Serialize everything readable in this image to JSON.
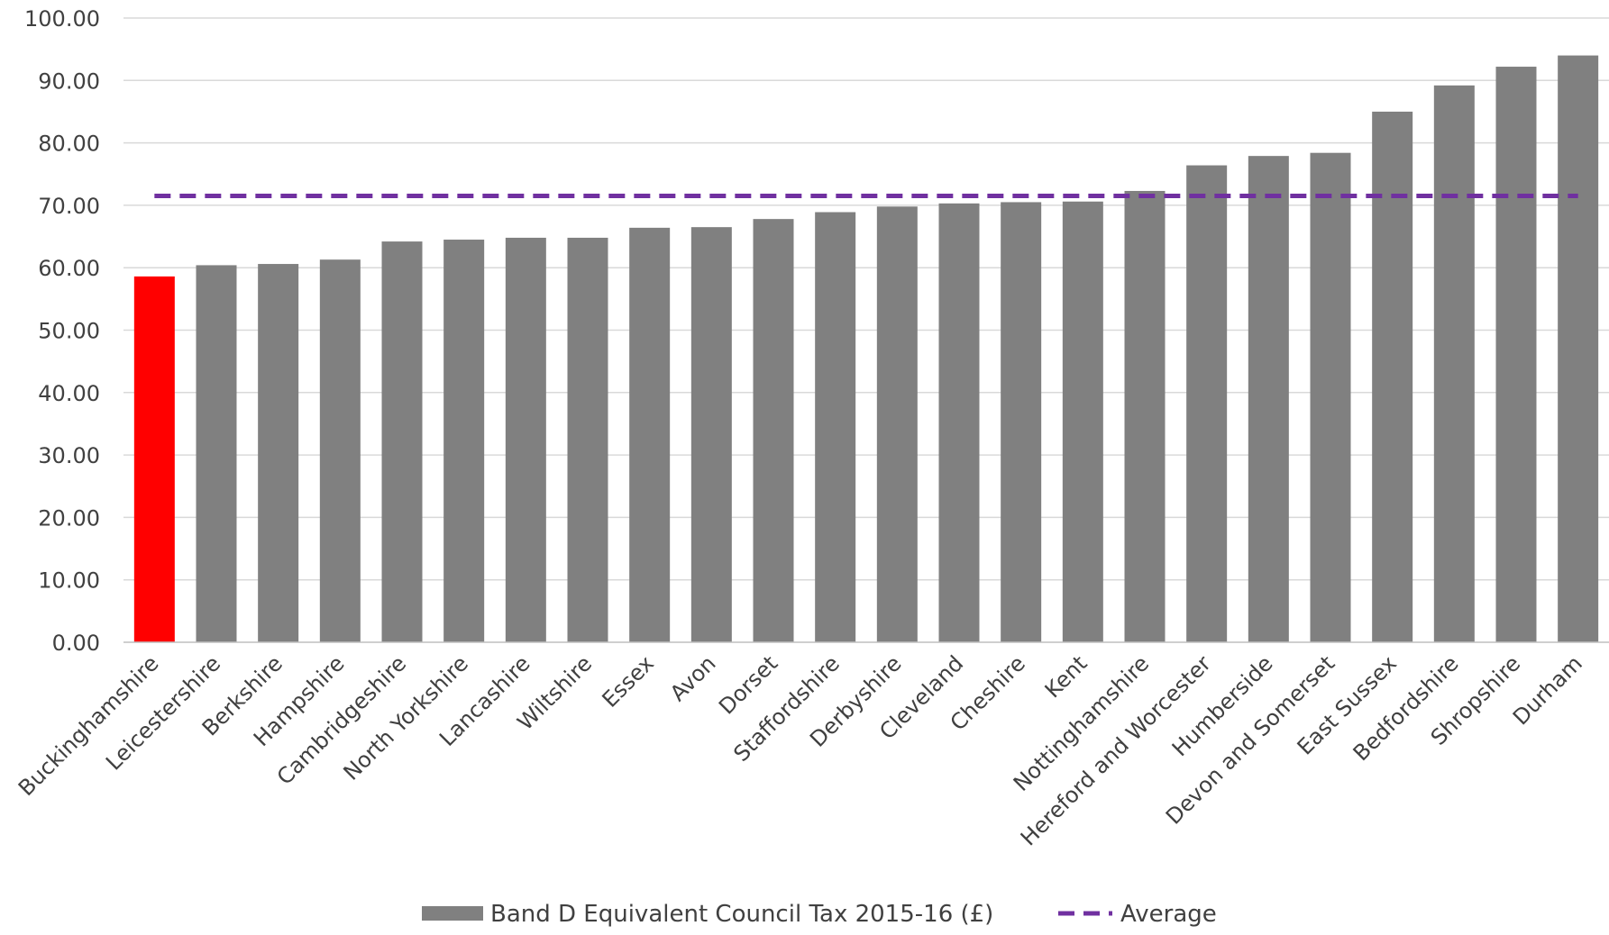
{
  "chart_data": {
    "type": "bar",
    "title": "",
    "xlabel": "",
    "ylabel": "",
    "ylim": [
      0,
      100
    ],
    "yticks": [
      "0.00",
      "10.00",
      "20.00",
      "30.00",
      "40.00",
      "50.00",
      "60.00",
      "70.00",
      "80.00",
      "90.00",
      "100.00"
    ],
    "grid": true,
    "legend_position": "bottom",
    "categories": [
      "Buckinghamshire",
      "Leicestershire",
      "Berkshire",
      "Hampshire",
      "Cambridgeshire",
      "North Yorkshire",
      "Lancashire",
      "Wiltshire",
      "Essex",
      "Avon",
      "Dorset",
      "Staffordshire",
      "Derbyshire",
      "Cleveland",
      "Cheshire",
      "Kent",
      "Nottinghamshire",
      "Hereford and Worcester",
      "Humberside",
      "Devon and Somerset",
      "East Sussex",
      "Bedfordshire",
      "Shropshire",
      "Durham"
    ],
    "series": [
      {
        "name": "Band D Equivalent Council Tax 2015-16 (£)",
        "type": "bar",
        "color": "#808080",
        "highlight_color": "#ff0000",
        "highlight_index": 0,
        "values": [
          58.6,
          60.4,
          60.6,
          61.3,
          64.2,
          64.5,
          64.8,
          64.8,
          66.4,
          66.5,
          67.8,
          68.9,
          69.8,
          70.3,
          70.5,
          70.6,
          72.3,
          76.4,
          77.9,
          78.4,
          85.0,
          89.2,
          92.2,
          94.0
        ]
      },
      {
        "name": "Average",
        "type": "line",
        "style": "dashed",
        "color": "#7030a0",
        "value": 71.5
      }
    ]
  }
}
